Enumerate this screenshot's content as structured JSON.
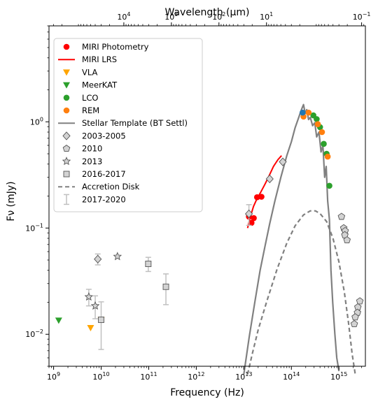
{
  "chart_data": {
    "type": "scatter",
    "xlabel": "Frequency (Hz)",
    "ylabel": "Fν (mJy)",
    "top_xlabel": "Wavelength (μm)",
    "xscale": "log",
    "yscale": "log",
    "xlim": [
      800000000.0,
      3600000000000000.0
    ],
    "ylim": [
      0.005,
      8.0
    ],
    "grid": false,
    "legend_position": "top-left",
    "x_ticks": [
      {
        "value": 1000000000.0,
        "label": "10",
        "exp": "9"
      },
      {
        "value": 10000000000.0,
        "label": "10",
        "exp": "10"
      },
      {
        "value": 100000000000.0,
        "label": "10",
        "exp": "11"
      },
      {
        "value": 1000000000000.0,
        "label": "10",
        "exp": "12"
      },
      {
        "value": 10000000000000.0,
        "label": "10",
        "exp": "13"
      },
      {
        "value": 100000000000000.0,
        "label": "10",
        "exp": "14"
      },
      {
        "value": 1000000000000000.0,
        "label": "10",
        "exp": "15"
      }
    ],
    "y_ticks": [
      {
        "value": 0.01,
        "label": "10",
        "exp": "−2"
      },
      {
        "value": 0.1,
        "label": "10",
        "exp": "−1"
      },
      {
        "value": 1,
        "label": "10",
        "exp": "0"
      }
    ],
    "top_ticks": [
      {
        "value": 10000,
        "label": "10",
        "exp": "4"
      },
      {
        "value": 1000,
        "label": "10",
        "exp": "3"
      },
      {
        "value": 100,
        "label": "10",
        "exp": "2"
      },
      {
        "value": 10,
        "label": "10",
        "exp": "1"
      },
      {
        "value": 0.1,
        "label": "10",
        "exp": "−1"
      }
    ],
    "series": [
      {
        "name": "MIRI Photometry",
        "kind": "marker",
        "marker": "circle",
        "color": "#ff0000",
        "points": [
          [
            12800000000000.0,
            0.128
          ],
          [
            14500000000000.0,
            0.112
          ],
          [
            16200000000000.0,
            0.124
          ],
          [
            19000000000000.0,
            0.195
          ],
          [
            23500000000000.0,
            0.197
          ]
        ]
      },
      {
        "name": "MIRI LRS",
        "kind": "line",
        "color": "#ff0000",
        "points": [
          [
            12000000000000.0,
            0.1
          ],
          [
            13500000000000.0,
            0.125
          ],
          [
            16000000000000.0,
            0.16
          ],
          [
            19000000000000.0,
            0.19
          ],
          [
            23000000000000.0,
            0.22
          ],
          [
            28000000000000.0,
            0.26
          ],
          [
            34000000000000.0,
            0.31
          ],
          [
            42000000000000.0,
            0.38
          ],
          [
            52000000000000.0,
            0.44
          ],
          [
            62000000000000.0,
            0.48
          ]
        ]
      },
      {
        "name": "VLA",
        "kind": "marker",
        "marker": "triangle-down",
        "color": "#ffa500",
        "points": [
          [
            6000000000.0,
            0.0115
          ],
          [
            10000000000.0,
            0.0137
          ]
        ]
      },
      {
        "name": "MeerKAT",
        "kind": "marker",
        "marker": "triangle-down",
        "color": "#2ca02c",
        "points": [
          [
            1280000000.0,
            0.0135
          ]
        ]
      },
      {
        "name": "LCO",
        "kind": "marker",
        "marker": "circle",
        "color": "#2ca02c",
        "points": [
          [
            290000000000000.0,
            1.15
          ],
          [
            340000000000000.0,
            1.06
          ],
          [
            400000000000000.0,
            0.89
          ],
          [
            480000000000000.0,
            0.62
          ],
          [
            550000000000000.0,
            0.5
          ],
          [
            630000000000000.0,
            0.25
          ]
        ]
      },
      {
        "name": "REM",
        "kind": "marker",
        "marker": "circle",
        "color": "#ff7f0e",
        "points": [
          [
            180000000000000.0,
            1.12
          ],
          [
            230000000000000.0,
            1.22
          ],
          [
            360000000000000.0,
            0.95
          ],
          [
            440000000000000.0,
            0.8
          ],
          [
            580000000000000.0,
            0.47
          ]
        ]
      },
      {
        "name": "Stellar Template (BT Settl)",
        "kind": "line",
        "color": "#808080",
        "points": [
          [
            10000000000000.0,
            0.0042
          ],
          [
            13000000000000.0,
            0.0095
          ],
          [
            17000000000000.0,
            0.02
          ],
          [
            22000000000000.0,
            0.04
          ],
          [
            28000000000000.0,
            0.068
          ],
          [
            35000000000000.0,
            0.11
          ],
          [
            45000000000000.0,
            0.18
          ],
          [
            60000000000000.0,
            0.3
          ],
          [
            80000000000000.0,
            0.48
          ],
          [
            100000000000000.0,
            0.65
          ],
          [
            120000000000000.0,
            0.88
          ],
          [
            145000000000000.0,
            1.12
          ],
          [
            165000000000000.0,
            1.32
          ],
          [
            180000000000000.0,
            1.45
          ],
          [
            195000000000000.0,
            1.2
          ],
          [
            210000000000000.0,
            1.3
          ],
          [
            230000000000000.0,
            1.05
          ],
          [
            250000000000000.0,
            1.1
          ],
          [
            280000000000000.0,
            0.92
          ],
          [
            310000000000000.0,
            0.98
          ],
          [
            340000000000000.0,
            0.72
          ],
          [
            380000000000000.0,
            0.8
          ],
          [
            420000000000000.0,
            0.52
          ],
          [
            460000000000000.0,
            0.6
          ],
          [
            500000000000000.0,
            0.3
          ],
          [
            540000000000000.0,
            0.38
          ],
          [
            580000000000000.0,
            0.18
          ],
          [
            630000000000000.0,
            0.12
          ],
          [
            680000000000000.0,
            0.04
          ],
          [
            740000000000000.0,
            0.02
          ],
          [
            820000000000000.0,
            0.01
          ],
          [
            900000000000000.0,
            0.006
          ],
          [
            1000000000000000.0,
            0.0045
          ]
        ]
      },
      {
        "name": "2003-2005",
        "kind": "marker",
        "marker": "diamond",
        "color": "#d3d3d3",
        "points": [
          [
            8500000000.0,
            0.051
          ],
          [
            12800000000000.0,
            0.136
          ],
          [
            35000000000000.0,
            0.29
          ],
          [
            66000000000000.0,
            0.42
          ]
        ],
        "errors": [
          0.006,
          0.03,
          0.0,
          0.0
        ]
      },
      {
        "name": "2010",
        "kind": "marker",
        "marker": "pentagon",
        "color": "#d3d3d3",
        "points": [
          [
            1130000000000000.0,
            0.128
          ],
          [
            1260000000000000.0,
            0.1
          ],
          [
            1350000000000000.0,
            0.094
          ],
          [
            1330000000000000.0,
            0.086
          ],
          [
            1480000000000000.0,
            0.077
          ],
          [
            2750000000000000.0,
            0.0205
          ],
          [
            2500000000000000.0,
            0.018
          ],
          [
            2450000000000000.0,
            0.016
          ],
          [
            2200000000000000.0,
            0.0145
          ],
          [
            2100000000000000.0,
            0.0125
          ]
        ]
      },
      {
        "name": "2013",
        "kind": "marker",
        "marker": "star",
        "color": "#d3d3d3",
        "points": [
          [
            22000000000.0,
            0.054
          ],
          [
            5500000000.0,
            0.0225
          ],
          [
            7500000000.0,
            0.0185
          ]
        ],
        "errors": [
          0.0,
          0.004,
          0.0045
        ]
      },
      {
        "name": "2016-2017",
        "kind": "marker",
        "marker": "square",
        "color": "#d3d3d3",
        "points": [
          [
            10000000000.0,
            0.0137
          ],
          [
            98000000000.0,
            0.046
          ],
          [
            230000000000.0,
            0.028
          ]
        ],
        "errors": [
          0.0065,
          0.007,
          0.009
        ]
      },
      {
        "name": "Accretion Disk",
        "kind": "line",
        "color": "#808080",
        "dashed": true,
        "points": [
          [
            12000000000000.0,
            0.0042
          ],
          [
            15000000000000.0,
            0.0065
          ],
          [
            20000000000000.0,
            0.011
          ],
          [
            30000000000000.0,
            0.02
          ],
          [
            50000000000000.0,
            0.041
          ],
          [
            80000000000000.0,
            0.072
          ],
          [
            120000000000000.0,
            0.105
          ],
          [
            180000000000000.0,
            0.133
          ],
          [
            250000000000000.0,
            0.145
          ],
          [
            320000000000000.0,
            0.145
          ],
          [
            400000000000000.0,
            0.137
          ],
          [
            550000000000000.0,
            0.115
          ],
          [
            750000000000000.0,
            0.08
          ],
          [
            1000000000000000.0,
            0.048
          ],
          [
            1300000000000000.0,
            0.025
          ],
          [
            1600000000000000.0,
            0.0125
          ],
          [
            1900000000000000.0,
            0.0065
          ],
          [
            2200000000000000.0,
            0.0042
          ]
        ]
      },
      {
        "name": "2017-2020",
        "kind": "errorbar",
        "color": "#c0c0c0",
        "points": []
      }
    ],
    "extra_points": [
      {
        "marker": "circle",
        "color": "#1f77b4",
        "x": 172000000000000.0,
        "y": 1.22
      }
    ]
  }
}
